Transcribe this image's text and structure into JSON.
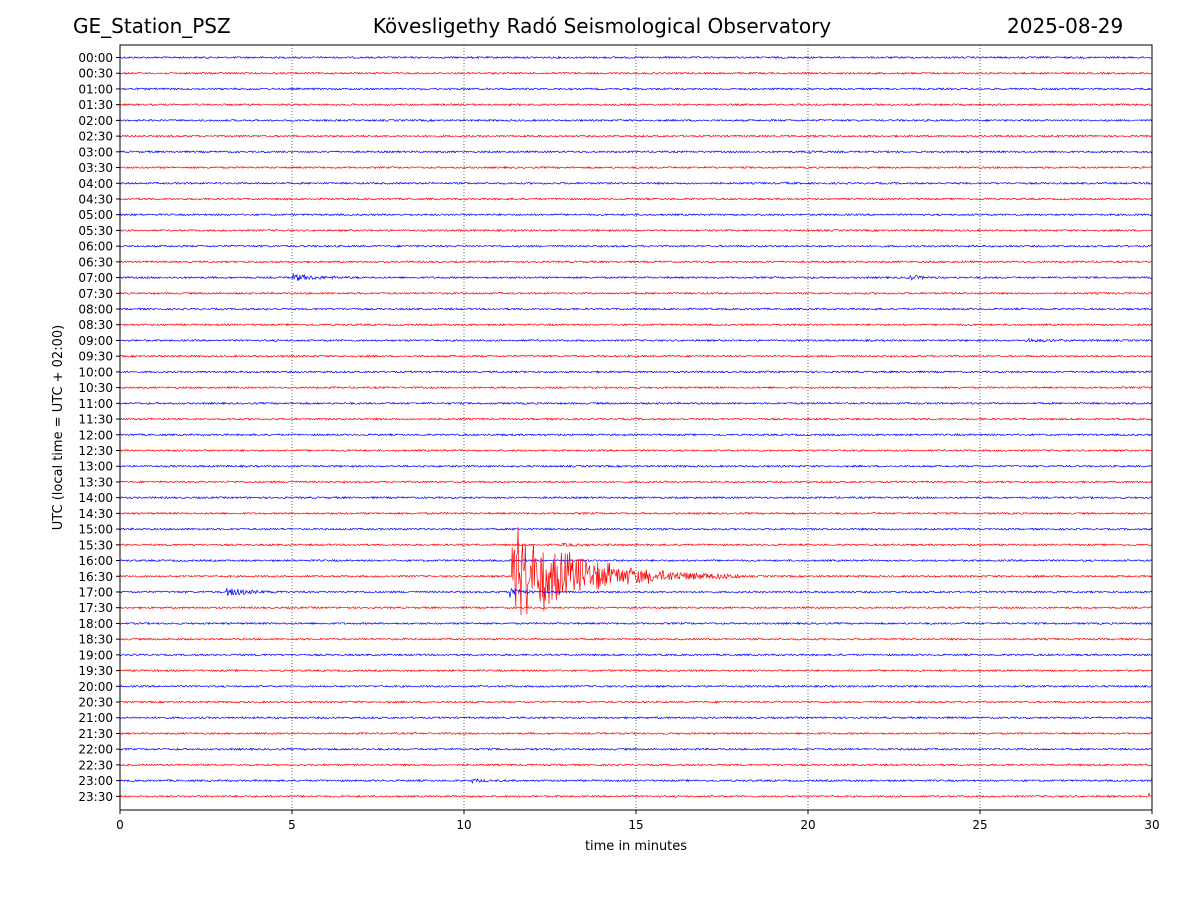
{
  "header": {
    "station": "GE_Station_PSZ",
    "observatory": "Kövesligethy Radó Seismological Observatory",
    "date": "2025-08-29"
  },
  "colors": {
    "trace_odd": "#0000ff",
    "trace_even": "#ff0000",
    "grid": "#000000"
  },
  "chart_data": {
    "type": "line",
    "subtype": "helicorder",
    "xlabel": "time in minutes",
    "ylabel": "UTC (local time = UTC + 02:00)",
    "xlim": [
      0,
      30
    ],
    "x_ticks": [
      0,
      5,
      10,
      15,
      20,
      25,
      30
    ],
    "x_tick_labels": [
      "0",
      "5",
      "10",
      "15",
      "20",
      "25",
      "30"
    ],
    "vertical_grid_at": [
      5,
      10,
      15,
      20,
      25
    ],
    "grid_style": "dotted vertical",
    "row_labels": [
      "00:00",
      "00:30",
      "01:00",
      "01:30",
      "02:00",
      "02:30",
      "03:00",
      "03:30",
      "04:00",
      "04:30",
      "05:00",
      "05:30",
      "06:00",
      "06:30",
      "07:00",
      "07:30",
      "08:00",
      "08:30",
      "09:00",
      "09:30",
      "10:00",
      "10:30",
      "11:00",
      "11:30",
      "12:00",
      "12:30",
      "13:00",
      "13:30",
      "14:00",
      "14:30",
      "15:00",
      "15:30",
      "16:00",
      "16:30",
      "17:00",
      "17:30",
      "18:00",
      "18:30",
      "19:00",
      "19:30",
      "20:00",
      "20:30",
      "21:00",
      "21:30",
      "22:00",
      "22:30",
      "23:00",
      "23:30"
    ],
    "trace_color_cycle": [
      "blue",
      "red"
    ],
    "events": [
      {
        "row": "03:00",
        "start_min": 20.0,
        "end_min": 20.5,
        "amplitude": 0.15
      },
      {
        "row": "04:00",
        "start_min": 19.3,
        "end_min": 20.0,
        "amplitude": 0.06
      },
      {
        "row": "07:00",
        "start_min": 5.0,
        "end_min": 7.3,
        "amplitude": 0.25
      },
      {
        "row": "07:00",
        "start_min": 22.9,
        "end_min": 24.0,
        "amplitude": 0.2
      },
      {
        "row": "09:00",
        "start_min": 26.3,
        "end_min": 28.6,
        "amplitude": 0.1
      },
      {
        "row": "15:30",
        "start_min": 12.8,
        "end_min": 15.0,
        "amplitude": 0.08
      },
      {
        "row": "16:30",
        "start_min": 11.4,
        "end_min": 18.0,
        "amplitude": 3.8
      },
      {
        "row": "17:00",
        "start_min": 3.1,
        "end_min": 4.9,
        "amplitude": 0.35
      },
      {
        "row": "17:00",
        "start_min": 11.3,
        "end_min": 12.2,
        "amplitude": 0.6
      },
      {
        "row": "23:00",
        "start_min": 10.2,
        "end_min": 11.2,
        "amplitude": 0.15
      },
      {
        "row": "23:30",
        "start_min": 29.9,
        "end_min": 30.0,
        "amplitude": 0.4
      }
    ]
  }
}
